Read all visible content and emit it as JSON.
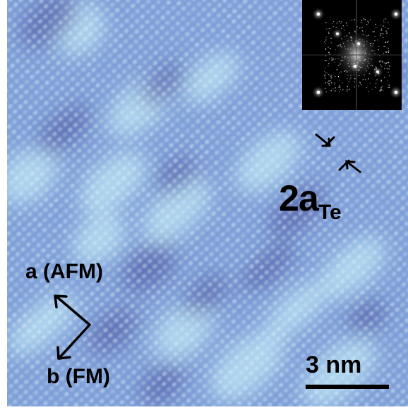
{
  "figure": {
    "palette": {
      "base": "#7f9fd8",
      "bright": "#bde6f4",
      "dark": "#5661a8",
      "border": "#ffffff",
      "label": "#000000"
    }
  },
  "annotations": {
    "axis_a": "a (AFM)",
    "axis_b": "b (FM)",
    "lattice_main": "2a",
    "lattice_sub": "Te",
    "scale_bar": "3 nm"
  },
  "inset": {
    "content": "FFT pattern",
    "background": "#000000"
  }
}
